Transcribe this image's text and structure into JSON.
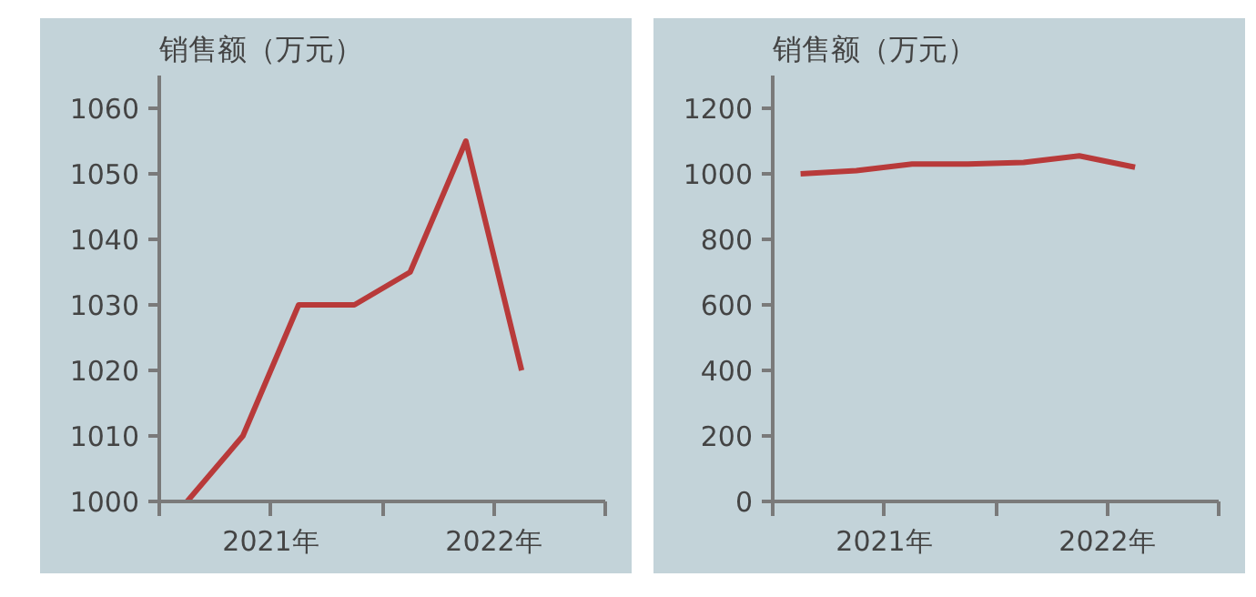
{
  "chart_data": [
    {
      "type": "line",
      "title": "销售额（万元）",
      "x": [
        2021.125,
        2021.375,
        2021.625,
        2021.875,
        2022.125,
        2022.375,
        2022.625
      ],
      "series": [
        {
          "color": "#b83a3a",
          "values": [
            1000,
            1010,
            1030,
            1030,
            1035,
            1055,
            1020
          ]
        }
      ],
      "xlim": [
        2021,
        2023
      ],
      "xticks": [
        {
          "value": 2021,
          "label": null
        },
        {
          "value": 2021.5,
          "label": "2021年"
        },
        {
          "value": 2022,
          "label": null
        },
        {
          "value": 2022.5,
          "label": "2022年"
        },
        {
          "value": 2023,
          "label": null
        }
      ],
      "ylim": [
        1000,
        1065
      ],
      "yticks": [
        1000,
        1010,
        1020,
        1030,
        1040,
        1050,
        1060
      ],
      "line_style": "solid"
    },
    {
      "type": "line",
      "title": "销售额（万元）",
      "x": [
        2021.125,
        2021.375,
        2021.625,
        2021.875,
        2022.125,
        2022.375,
        2022.625
      ],
      "series": [
        {
          "color": "#b83a3a",
          "values": [
            1000,
            1010,
            1030,
            1030,
            1035,
            1055,
            1020
          ]
        }
      ],
      "xlim": [
        2021,
        2023
      ],
      "xticks": [
        {
          "value": 2021,
          "label": null
        },
        {
          "value": 2021.5,
          "label": "2021年"
        },
        {
          "value": 2022,
          "label": null
        },
        {
          "value": 2022.5,
          "label": "2022年"
        },
        {
          "value": 2023,
          "label": null
        }
      ],
      "ylim": [
        0,
        1300
      ],
      "yticks": [
        0,
        200,
        400,
        600,
        800,
        1000,
        1200
      ],
      "line_style": "solid"
    }
  ]
}
